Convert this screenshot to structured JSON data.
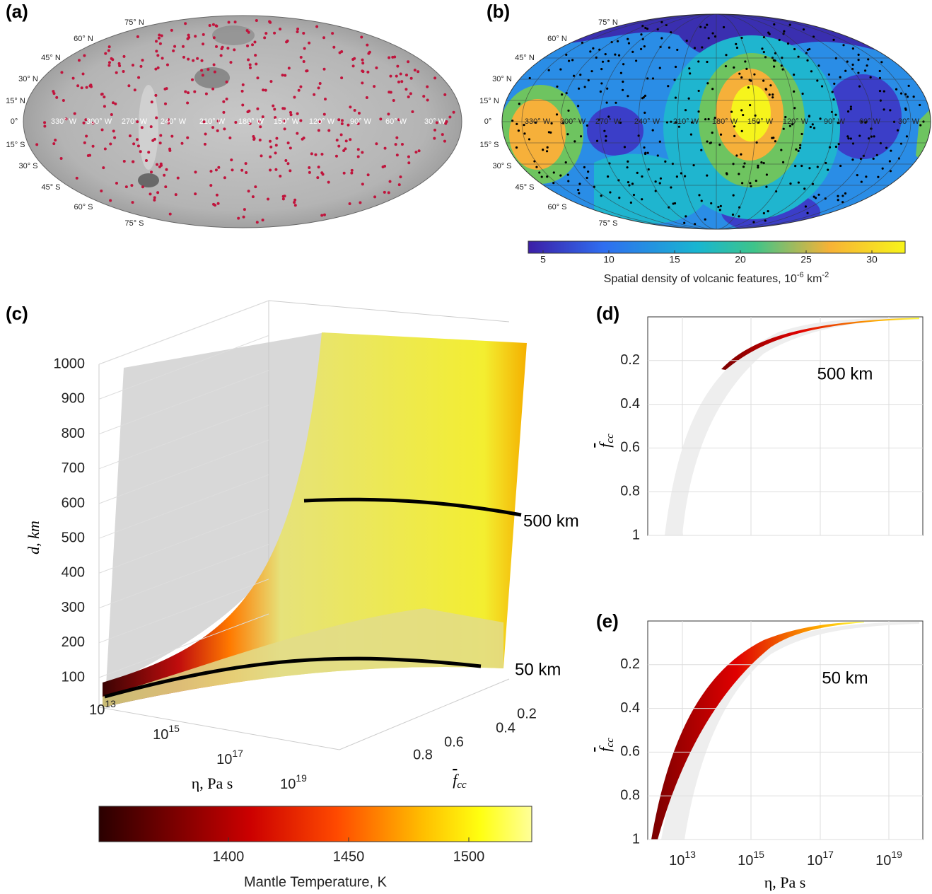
{
  "panel_a": {
    "label": "(a)",
    "latitudes": [
      "75° N",
      "60° N",
      "45° N",
      "30° N",
      "15° N",
      "0°",
      "15° S",
      "30° S",
      "45° S",
      "60° S",
      "75° S"
    ],
    "longitudes": [
      "330° W",
      "300° W",
      "270° W",
      "240° W",
      "210° W",
      "180° W",
      "150° W",
      "120° W",
      "90° W",
      "60° W",
      "30° W"
    ]
  },
  "panel_b": {
    "label": "(b)",
    "latitudes": [
      "75° N",
      "60° N",
      "45° N",
      "30° N",
      "15° N",
      "0°",
      "15° S",
      "30° S",
      "45° S",
      "60° S",
      "75° S"
    ],
    "longitudes": [
      "330° W",
      "300° W",
      "270° W",
      "240° W",
      "210° W",
      "180° W",
      "150° W",
      "120° W",
      "90° W",
      "60° W",
      "30° W"
    ],
    "colorbar": {
      "ticks": [
        5,
        10,
        15,
        20,
        25,
        30
      ],
      "label": {
        "text": "Spatial density of volcanic features, 10",
        "exponent1": "-6",
        "unit": " km",
        "exponent2": "-2"
      }
    }
  },
  "panel_c": {
    "label": "(c)",
    "y_axis_label": "d, km",
    "yticks": [
      100,
      200,
      300,
      400,
      500,
      600,
      700,
      800,
      900,
      1000
    ],
    "x_axis_label": "η, Pa s",
    "xticks": [
      {
        "base": "10",
        "exponent": "13"
      },
      {
        "base": "10",
        "exponent": "15"
      },
      {
        "base": "10",
        "exponent": "17"
      },
      {
        "base": "10",
        "exponent": "19"
      }
    ],
    "depth_axis_label": {
      "symbol": "f",
      "subscript": "cc"
    },
    "depth_ticks": [
      0.2,
      0.4,
      0.6,
      0.8
    ],
    "annotations": [
      "500 km",
      "50 km"
    ],
    "colorbar": {
      "ticks": [
        1400,
        1450,
        1500
      ],
      "label": "Mantle Temperature, K"
    }
  },
  "panel_d": {
    "label": "(d)",
    "yticks": [
      0.2,
      0.4,
      0.6,
      0.8,
      1
    ],
    "y_axis_label": {
      "symbol": "f",
      "subscript": "cc"
    },
    "annotation": "500 km"
  },
  "panel_e": {
    "label": "(e)",
    "yticks": [
      0.2,
      0.4,
      0.6,
      0.8,
      1
    ],
    "y_axis_label": {
      "symbol": "f",
      "subscript": "cc"
    },
    "annotation": "50 km",
    "xticks": [
      {
        "base": "10",
        "exponent": "13"
      },
      {
        "base": "10",
        "exponent": "15"
      },
      {
        "base": "10",
        "exponent": "17"
      },
      {
        "base": "10",
        "exponent": "19"
      }
    ],
    "x_axis_label": "η, Pa s"
  }
}
